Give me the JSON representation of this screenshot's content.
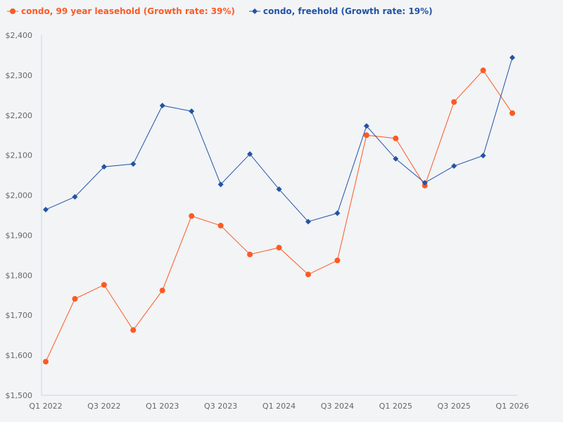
{
  "chart_data": {
    "type": "line",
    "title": "",
    "xlabel": "",
    "ylabel": "",
    "ylim": [
      1500,
      2400
    ],
    "yticks": [
      "$1,500",
      "$1,600",
      "$1,700",
      "$1,800",
      "$1,900",
      "$2,000",
      "$2,100",
      "$2,200",
      "$2,300",
      "$2,400"
    ],
    "ytick_values": [
      1500,
      1600,
      1700,
      1800,
      1900,
      2000,
      2100,
      2200,
      2300,
      2400
    ],
    "x": [
      "Q1 2022",
      "Q2 2022",
      "Q3 2022",
      "Q4 2022",
      "Q1 2023",
      "Q2 2023",
      "Q3 2023",
      "Q4 2023",
      "Q1 2024",
      "Q2 2024",
      "Q3 2024",
      "Q4 2024",
      "Q1 2025",
      "Q2 2025",
      "Q3 2025",
      "Q4 2025",
      "Q1 2026"
    ],
    "xtick_labels": [
      "Q1 2022",
      "Q3 2022",
      "Q1 2023",
      "Q3 2023",
      "Q1 2024",
      "Q3 2024",
      "Q1 2025",
      "Q3 2025",
      "Q1 2026"
    ],
    "grid": false,
    "legend_position": "top-left",
    "series": [
      {
        "name": "condo, 99 year leasehold (Growth rate: 39%)",
        "color": "#fc5a23",
        "marker": "circle",
        "values": [
          1584,
          1741,
          1776,
          1663,
          1762,
          1948,
          1924,
          1852,
          1869,
          1802,
          1837,
          2150,
          2142,
          2024,
          2233,
          2312,
          2205
        ]
      },
      {
        "name": "condo, freehold (Growth rate: 19%)",
        "color": "#2452a4",
        "marker": "diamond",
        "values": [
          1964,
          1996,
          2071,
          2078,
          2224,
          2210,
          2027,
          2103,
          2015,
          1934,
          1955,
          2173,
          2091,
          2031,
          2073,
          2099,
          2344
        ]
      }
    ]
  }
}
